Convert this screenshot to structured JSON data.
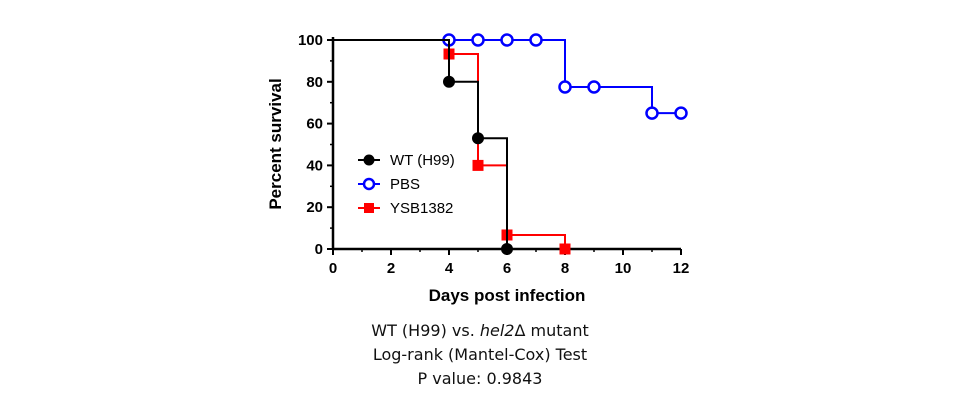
{
  "chart_data": {
    "type": "line",
    "subtype": "kaplan-meier step",
    "xlabel": "Days post infection",
    "ylabel": "Percent survival",
    "xlim": [
      0,
      12
    ],
    "ylim": [
      0,
      100
    ],
    "xticks": [
      0,
      2,
      4,
      6,
      8,
      10,
      12
    ],
    "yticks": [
      0,
      20,
      40,
      60,
      80,
      100
    ],
    "grid": false,
    "legend_position": "left",
    "series": [
      {
        "name": "WT (H99)",
        "color": "#000000",
        "marker": "filled-circle",
        "steps": [
          [
            0,
            100
          ],
          [
            4,
            100
          ],
          [
            4,
            80
          ],
          [
            5,
            80
          ],
          [
            5,
            53
          ],
          [
            6,
            53
          ],
          [
            6,
            0
          ]
        ],
        "markers": [
          [
            4,
            80
          ],
          [
            5,
            53
          ],
          [
            6,
            0
          ]
        ]
      },
      {
        "name": "PBS",
        "color": "#0000ff",
        "marker": "open-circle",
        "steps": [
          [
            0,
            100
          ],
          [
            8,
            100
          ],
          [
            8,
            77.5
          ],
          [
            11,
            77.5
          ],
          [
            11,
            65
          ],
          [
            12,
            65
          ]
        ],
        "markers": [
          [
            4,
            100
          ],
          [
            5,
            100
          ],
          [
            6,
            100
          ],
          [
            7,
            100
          ],
          [
            8,
            77.5
          ],
          [
            9,
            77.5
          ],
          [
            11,
            65
          ],
          [
            12,
            65
          ]
        ]
      },
      {
        "name": "YSB1382",
        "color": "#ff0000",
        "marker": "filled-square",
        "steps": [
          [
            0,
            100
          ],
          [
            4,
            100
          ],
          [
            4,
            93.3
          ],
          [
            5,
            93.3
          ],
          [
            5,
            40
          ],
          [
            6,
            40
          ],
          [
            6,
            6.7
          ],
          [
            8,
            6.7
          ],
          [
            8,
            0
          ]
        ],
        "markers": [
          [
            4,
            93.3
          ],
          [
            5,
            40
          ],
          [
            6,
            6.7
          ],
          [
            8,
            0
          ]
        ]
      }
    ]
  },
  "caption": {
    "line1_prefix": "WT (H99) vs. ",
    "line1_gene": "hel2",
    "line1_suffix": "Δ mutant",
    "line2": "Log-rank (Mantel-Cox) Test",
    "line3": "P value: 0.9843"
  }
}
